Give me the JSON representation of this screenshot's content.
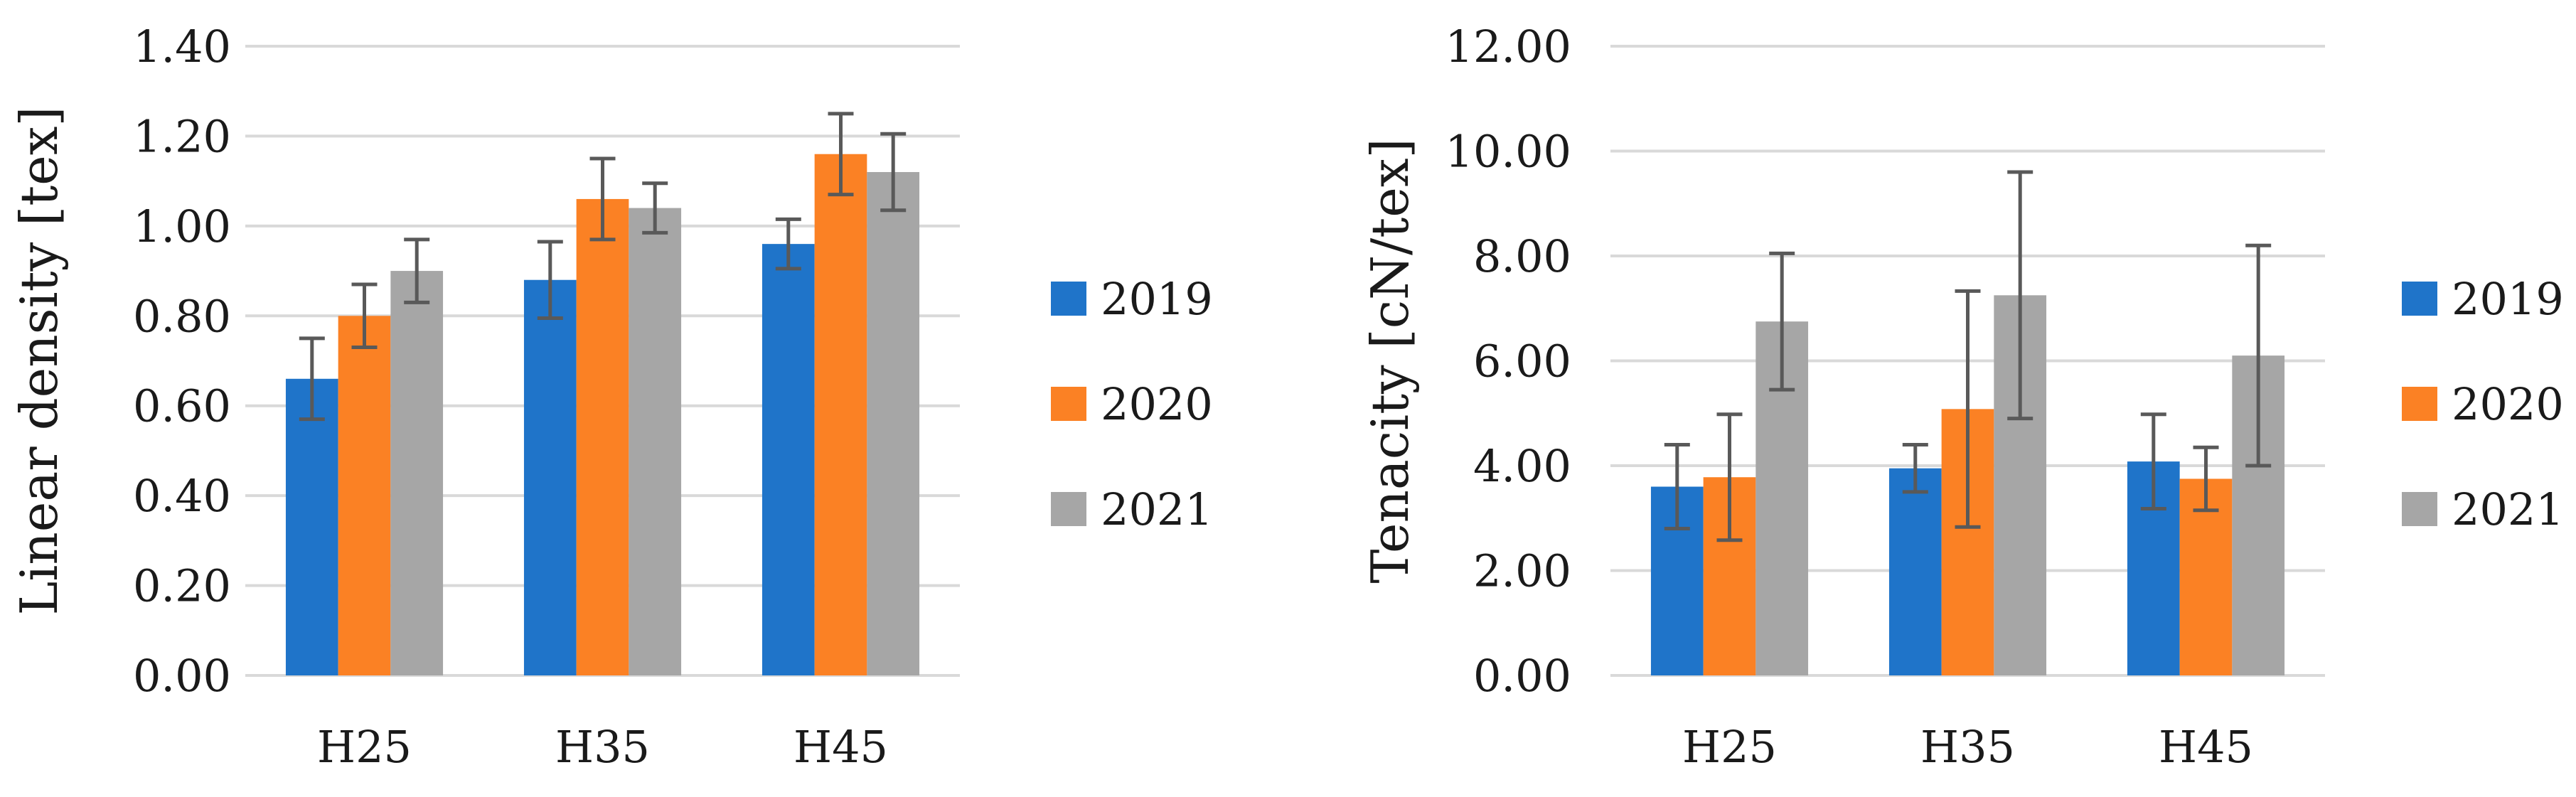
{
  "chart_data": [
    {
      "type": "bar",
      "title": "",
      "xlabel": "",
      "ylabel": "Linear density [tex]",
      "ylim": [
        0,
        1.4
      ],
      "yticks": [
        "0.00",
        "0.20",
        "0.40",
        "0.60",
        "0.80",
        "1.00",
        "1.20",
        "1.40"
      ],
      "categories": [
        "H25",
        "H35",
        "H45"
      ],
      "grid": true,
      "legend": "right",
      "series": [
        {
          "name": "2019",
          "color": "#1f74c9",
          "values": [
            0.66,
            0.88,
            0.96
          ],
          "errors": [
            0.09,
            0.085,
            0.055
          ]
        },
        {
          "name": "2020",
          "color": "#fb8124",
          "values": [
            0.8,
            1.06,
            1.16
          ],
          "errors": [
            0.07,
            0.09,
            0.09
          ]
        },
        {
          "name": "2021",
          "color": "#a6a6a6",
          "values": [
            0.9,
            1.04,
            1.12
          ],
          "errors": [
            0.07,
            0.055,
            0.085
          ]
        }
      ]
    },
    {
      "type": "bar",
      "title": "",
      "xlabel": "",
      "ylabel": "Tenacity [cN/tex]",
      "ylim": [
        0,
        12
      ],
      "yticks": [
        "0.00",
        "2.00",
        "4.00",
        "6.00",
        "8.00",
        "10.00",
        "12.00"
      ],
      "categories": [
        "H25",
        "H35",
        "H45"
      ],
      "grid": true,
      "legend": "right",
      "series": [
        {
          "name": "2019",
          "color": "#1f74c9",
          "values": [
            3.6,
            3.95,
            4.08
          ],
          "errors": [
            0.8,
            0.45,
            0.9
          ]
        },
        {
          "name": "2020",
          "color": "#fb8124",
          "values": [
            3.78,
            5.08,
            3.75
          ],
          "errors": [
            1.2,
            2.25,
            0.6
          ]
        },
        {
          "name": "2021",
          "color": "#a6a6a6",
          "values": [
            6.75,
            7.25,
            6.1
          ],
          "errors": [
            1.3,
            2.35,
            2.1
          ]
        }
      ]
    }
  ]
}
